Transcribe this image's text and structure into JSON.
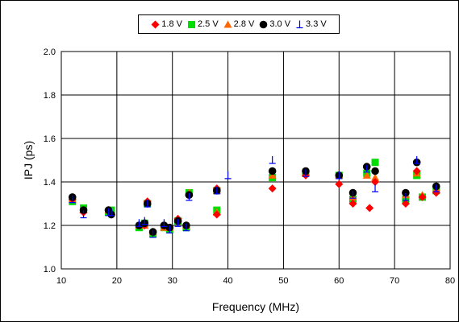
{
  "chart_data": {
    "type": "scatter",
    "title": "",
    "xlabel": "Frequency (MHz)",
    "ylabel": "IPJ (ps)",
    "xlim": [
      10,
      80
    ],
    "ylim": [
      1.0,
      2.0
    ],
    "xticks": [
      "10",
      "20",
      "30",
      "40",
      "50",
      "60",
      "70",
      "80"
    ],
    "yticks": [
      "1.0",
      "1.2",
      "1.4",
      "1.6",
      "1.8",
      "2.0"
    ],
    "grid": true,
    "legend_position": "top-center",
    "series": [
      {
        "name": "1.8 V",
        "marker": "diamond",
        "color": "#ff0000",
        "points": [
          [
            12,
            1.32
          ],
          [
            14,
            1.26
          ],
          [
            18.5,
            1.27
          ],
          [
            19,
            1.25
          ],
          [
            24,
            1.2
          ],
          [
            25,
            1.2
          ],
          [
            25.5,
            1.31
          ],
          [
            26.5,
            1.17
          ],
          [
            28.5,
            1.2
          ],
          [
            29.5,
            1.19
          ],
          [
            31,
            1.23
          ],
          [
            32.5,
            1.2
          ],
          [
            33,
            1.34
          ],
          [
            38,
            1.25
          ],
          [
            38,
            1.37
          ],
          [
            48,
            1.37
          ],
          [
            54,
            1.43
          ],
          [
            60,
            1.39
          ],
          [
            62.5,
            1.3
          ],
          [
            65.5,
            1.28
          ],
          [
            66.5,
            1.4
          ],
          [
            72,
            1.3
          ],
          [
            74,
            1.45
          ],
          [
            75,
            1.33
          ],
          [
            77.5,
            1.35
          ]
        ]
      },
      {
        "name": "2.5 V",
        "marker": "square",
        "color": "#00dd00",
        "points": [
          [
            12,
            1.31
          ],
          [
            14,
            1.28
          ],
          [
            18.5,
            1.26
          ],
          [
            19,
            1.27
          ],
          [
            24,
            1.19
          ],
          [
            25,
            1.21
          ],
          [
            25.5,
            1.3
          ],
          [
            26.5,
            1.16
          ],
          [
            28.5,
            1.19
          ],
          [
            29.5,
            1.18
          ],
          [
            31,
            1.22
          ],
          [
            32.5,
            1.19
          ],
          [
            33,
            1.35
          ],
          [
            38,
            1.27
          ],
          [
            38,
            1.36
          ],
          [
            48,
            1.42
          ],
          [
            54,
            1.44
          ],
          [
            60,
            1.43
          ],
          [
            62.5,
            1.32
          ],
          [
            65,
            1.44
          ],
          [
            66.5,
            1.49
          ],
          [
            72,
            1.32
          ],
          [
            74,
            1.43
          ],
          [
            75,
            1.33
          ],
          [
            77.5,
            1.36
          ]
        ]
      },
      {
        "name": "2.8 V",
        "marker": "triangle",
        "color": "#ff6600",
        "points": [
          [
            12,
            1.32
          ],
          [
            14,
            1.27
          ],
          [
            18.5,
            1.27
          ],
          [
            19,
            1.26
          ],
          [
            24,
            1.2
          ],
          [
            25,
            1.2
          ],
          [
            25.5,
            1.31
          ],
          [
            26.5,
            1.17
          ],
          [
            28.5,
            1.19
          ],
          [
            29.5,
            1.19
          ],
          [
            31,
            1.23
          ],
          [
            32.5,
            1.2
          ],
          [
            33,
            1.35
          ],
          [
            38,
            1.26
          ],
          [
            38,
            1.36
          ],
          [
            48,
            1.43
          ],
          [
            54,
            1.44
          ],
          [
            60,
            1.43
          ],
          [
            62.5,
            1.33
          ],
          [
            65,
            1.43
          ],
          [
            66.5,
            1.42
          ],
          [
            72,
            1.34
          ],
          [
            74,
            1.44
          ],
          [
            75,
            1.34
          ],
          [
            77.5,
            1.37
          ]
        ]
      },
      {
        "name": "3.0 V",
        "marker": "circle",
        "color": "#000000",
        "points": [
          [
            12,
            1.33
          ],
          [
            14,
            1.27
          ],
          [
            18.5,
            1.27
          ],
          [
            19,
            1.25
          ],
          [
            24,
            1.2
          ],
          [
            25,
            1.21
          ],
          [
            25.5,
            1.3
          ],
          [
            26.5,
            1.17
          ],
          [
            28.5,
            1.2
          ],
          [
            29.5,
            1.19
          ],
          [
            31,
            1.22
          ],
          [
            32.5,
            1.2
          ],
          [
            33,
            1.34
          ],
          [
            38,
            1.36
          ],
          [
            48,
            1.45
          ],
          [
            54,
            1.45
          ],
          [
            60,
            1.43
          ],
          [
            62.5,
            1.35
          ],
          [
            65,
            1.47
          ],
          [
            66.5,
            1.45
          ],
          [
            72,
            1.35
          ],
          [
            74,
            1.49
          ],
          [
            77.5,
            1.38
          ]
        ]
      },
      {
        "name": "3.3  V",
        "marker": "perp",
        "color": "#0000ff",
        "points": [
          [
            12,
            1.32
          ],
          [
            14,
            1.25
          ],
          [
            18.5,
            1.26
          ],
          [
            19,
            1.26
          ],
          [
            24,
            1.21
          ],
          [
            25,
            1.22
          ],
          [
            25.5,
            1.3
          ],
          [
            26.5,
            1.16
          ],
          [
            28.5,
            1.21
          ],
          [
            29.5,
            1.18
          ],
          [
            31,
            1.21
          ],
          [
            32.5,
            1.19
          ],
          [
            33,
            1.33
          ],
          [
            38,
            1.36
          ],
          [
            40,
            1.43
          ],
          [
            48,
            1.5
          ],
          [
            54,
            1.44
          ],
          [
            60,
            1.43
          ],
          [
            62.5,
            1.34
          ],
          [
            65,
            1.46
          ],
          [
            66.5,
            1.37
          ],
          [
            72,
            1.33
          ],
          [
            74,
            1.5
          ],
          [
            77.5,
            1.37
          ]
        ]
      }
    ]
  }
}
